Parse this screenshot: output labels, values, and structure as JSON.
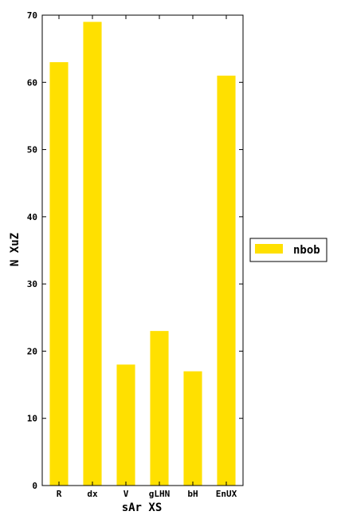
{
  "chart_data": {
    "type": "bar",
    "categories": [
      "R",
      "dx",
      "V",
      "gLHN",
      "bH",
      "EnUX"
    ],
    "series": [
      {
        "name": "nbob",
        "values": [
          63,
          69,
          18,
          23,
          17,
          61
        ]
      }
    ],
    "xlabel": "sAr XS",
    "ylabel": "N XuZ",
    "ylim": [
      0,
      70
    ],
    "yticks": [
      0,
      10,
      20,
      30,
      40,
      50,
      60,
      70
    ],
    "grid": false,
    "legend_position": "right",
    "colors": {
      "bar": "#ffe000",
      "axis": "#000000",
      "background": "#ffffff"
    }
  }
}
